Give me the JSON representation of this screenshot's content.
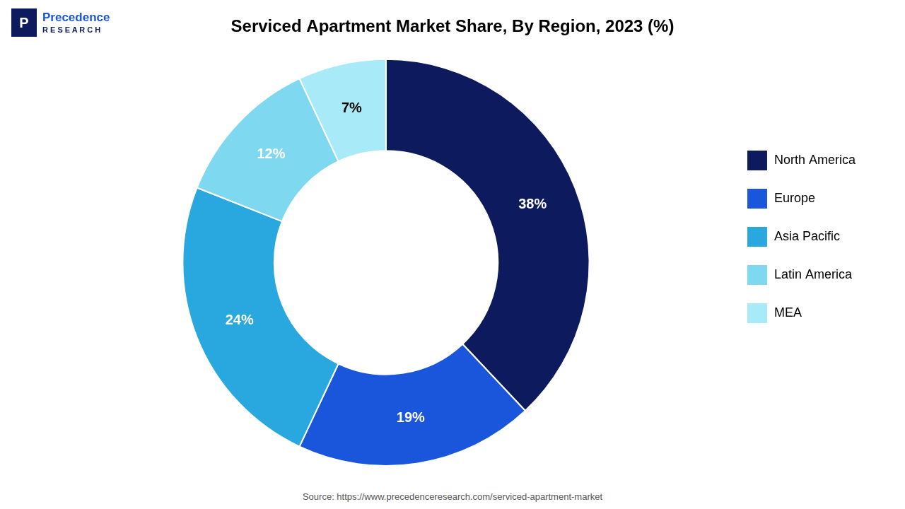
{
  "chart_data": {
    "type": "doughnut",
    "title": "Serviced Apartment Market Share, By Region, 2023 (%)",
    "categories": [
      "North America",
      "Europe",
      "Asia Pacific",
      "Latin America",
      "MEA"
    ],
    "values": [
      38,
      19,
      24,
      12,
      7
    ],
    "value_labels": [
      "38%",
      "19%",
      "24%",
      "12%",
      "7%"
    ],
    "colors": [
      "#0d1b5e",
      "#1a56db",
      "#29a8e0",
      "#7dd8f0",
      "#a8eaf7"
    ],
    "data_labels": true,
    "legend": "right",
    "annotations": [
      "P",
      "Precedence",
      "R E S E A R C H",
      "Source: https://www.precedenceresearch.com/serviced-apartment-market"
    ]
  }
}
